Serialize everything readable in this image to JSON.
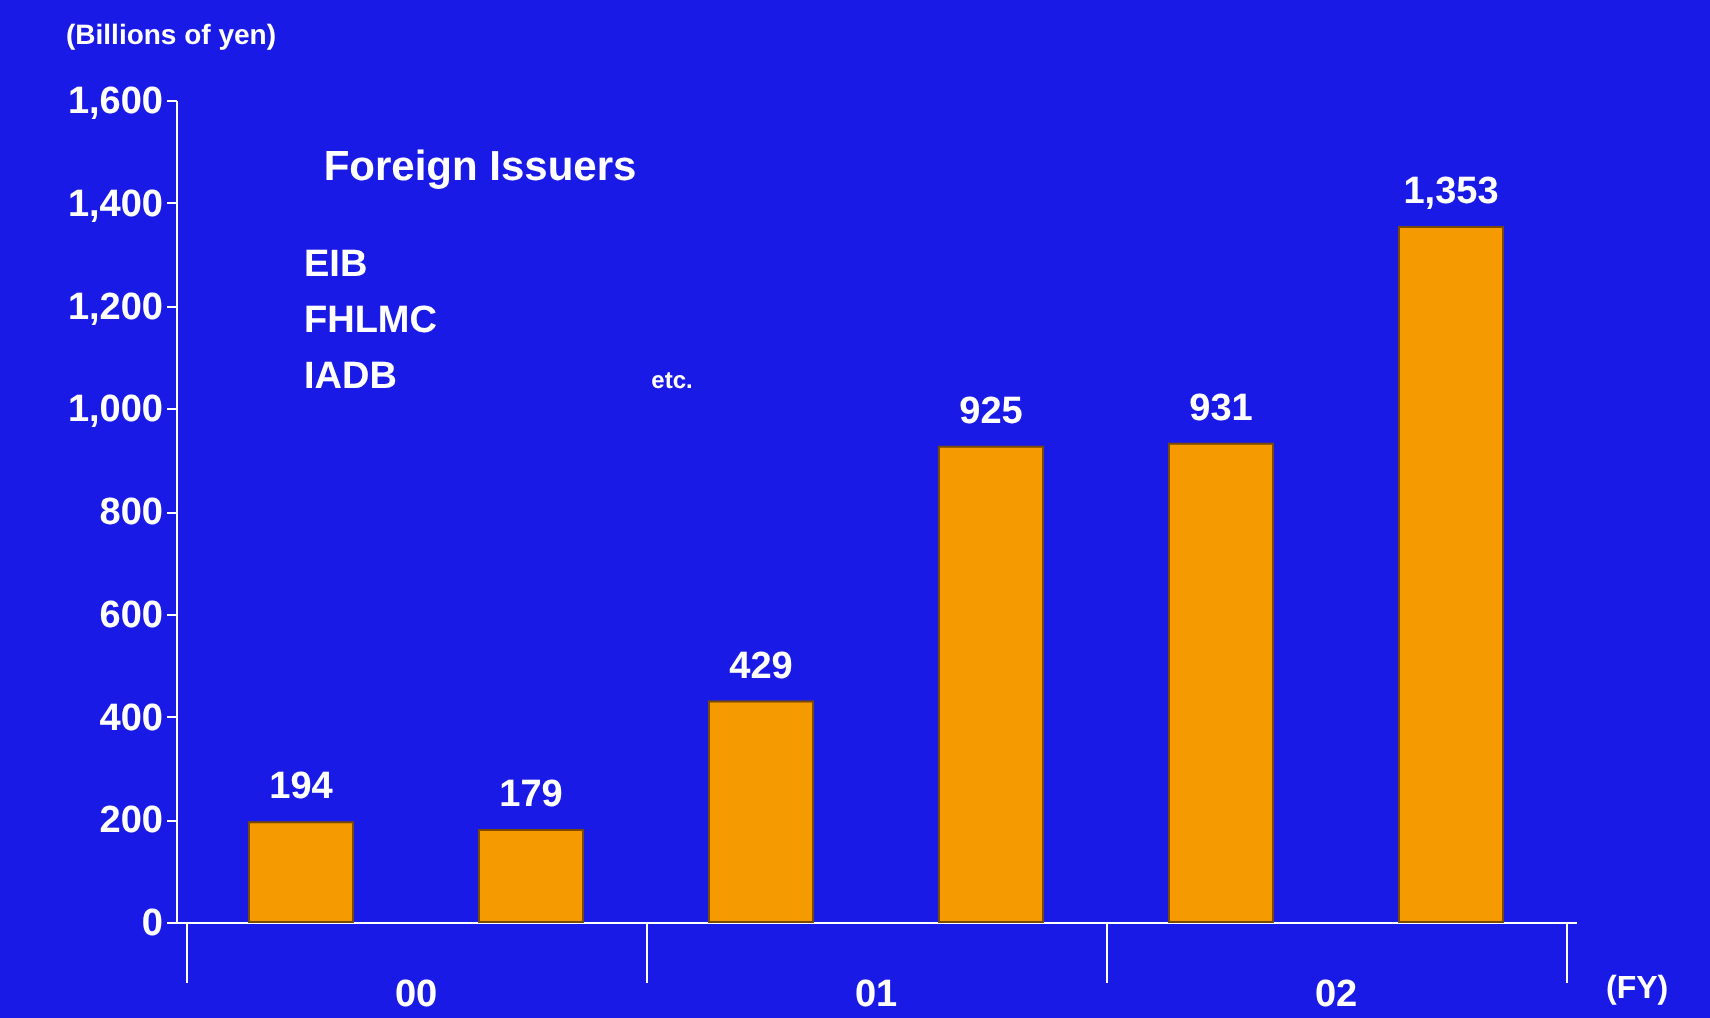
{
  "chart_data": {
    "type": "bar",
    "categories": [
      null,
      null,
      null,
      null,
      null,
      null
    ],
    "values": [
      194,
      179,
      429,
      925,
      931,
      1353
    ],
    "color": "#f59a00",
    "value_labels": [
      "194",
      "179",
      "429",
      "925",
      "931",
      "1,353"
    ],
    "ylabel": "(Billions of yen)",
    "xlabel": "(FY)",
    "ylim": [
      0,
      1600
    ],
    "yticks": [
      0,
      200,
      400,
      600,
      800,
      {
        "value": 1000,
        "label": "1,000"
      },
      {
        "value": 1200,
        "label": "1,200"
      },
      {
        "value": 1400,
        "label": "1,400"
      },
      {
        "value": 1600,
        "label": "1,600"
      }
    ],
    "grid": false,
    "annotations": [
      "00",
      "01",
      "02",
      "Foreign Issuers",
      "EIB",
      "FHLMC",
      "IADB",
      "etc."
    ]
  }
}
